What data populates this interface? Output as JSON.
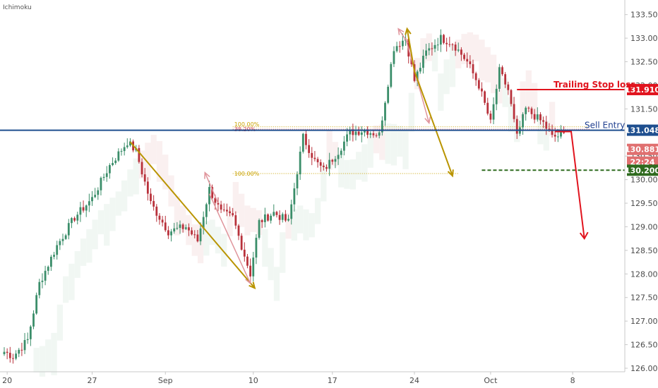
{
  "indicator_label": "Ichimoku",
  "colors": {
    "bull": "#3b8e6a",
    "bear": "#b8313b",
    "sell_line": "#1f4f8f",
    "trailing": "#e1141e",
    "target": "#2f6b1f",
    "fib": "#c9a200",
    "fib_red": "#d2485a",
    "cloud": "#f6e3e3",
    "cloud_green": "#e6f1ea"
  },
  "chart_data": {
    "type": "candlestick",
    "ylim": [
      126.0,
      133.6
    ],
    "yticks": [
      126.0,
      126.5,
      127.0,
      127.5,
      128.0,
      128.5,
      129.0,
      129.5,
      130.0,
      130.5,
      131.0,
      131.5,
      132.0,
      132.5,
      133.0,
      133.5
    ],
    "ytick_labels": [
      "126.000",
      "126.500",
      "127.000",
      "127.500",
      "128.000",
      "128.500",
      "129.000",
      "129.500",
      "130.000",
      "130.500",
      "131.000",
      "131.500",
      "132.000",
      "132.500",
      "133.000",
      "133.500"
    ],
    "xlabels": [
      "20",
      "27",
      "Sep",
      "10",
      "17",
      "24",
      "Oct",
      "8"
    ],
    "xlabel_index": [
      1,
      30,
      55,
      85,
      112,
      140,
      166,
      194
    ],
    "candle_count": 192,
    "anchors": [
      [
        0,
        126.35
      ],
      [
        3,
        126.25
      ],
      [
        8,
        126.6
      ],
      [
        12,
        127.8
      ],
      [
        18,
        128.6
      ],
      [
        24,
        129.2
      ],
      [
        30,
        129.6
      ],
      [
        36,
        130.3
      ],
      [
        42,
        130.8
      ],
      [
        45,
        130.6
      ],
      [
        50,
        129.5
      ],
      [
        56,
        128.9
      ],
      [
        62,
        129.0
      ],
      [
        66,
        128.7
      ],
      [
        70,
        129.8
      ],
      [
        74,
        129.3
      ],
      [
        78,
        129.2
      ],
      [
        84,
        128.0
      ],
      [
        87,
        129.1
      ],
      [
        92,
        129.3
      ],
      [
        97,
        129.1
      ],
      [
        102,
        130.9
      ],
      [
        106,
        130.4
      ],
      [
        109,
        130.2
      ],
      [
        114,
        130.6
      ],
      [
        118,
        131.0
      ],
      [
        123,
        131.05
      ],
      [
        128,
        130.95
      ],
      [
        133,
        132.8
      ],
      [
        137,
        133.0
      ],
      [
        140,
        132.1
      ],
      [
        144,
        132.7
      ],
      [
        149,
        133.0
      ],
      [
        153,
        132.9
      ],
      [
        158,
        132.5
      ],
      [
        162,
        132.0
      ],
      [
        166,
        131.2
      ],
      [
        169,
        132.3
      ],
      [
        172,
        131.9
      ],
      [
        175,
        130.9
      ],
      [
        178,
        131.5
      ],
      [
        181,
        131.35
      ],
      [
        184,
        131.2
      ],
      [
        187,
        130.9
      ],
      [
        191,
        130.95
      ]
    ],
    "sell_entry": 131.048,
    "current_price": 130.881,
    "current_time": "22:24",
    "trailing_stop": 131.91,
    "target": 130.2,
    "fib_levels": [
      {
        "label": "100.00%",
        "price": 131.12
      },
      {
        "label": "38.20%",
        "price": 131.07
      },
      {
        "label": "100.00%",
        "price": 130.13
      }
    ],
    "annotations": {
      "trailing_label": "Trailing Stop loss",
      "sell_label": "Sell Entry"
    },
    "badges": [
      {
        "text": "133.500",
        "price": 133.5
      },
      {
        "text": "131.910",
        "price": 131.91
      },
      {
        "text": "131.048",
        "price": 131.048
      },
      {
        "text": "130.881",
        "price": 130.881
      },
      {
        "text": "22:24",
        "price": 130.881
      },
      {
        "text": "130.200",
        "price": 130.2
      }
    ]
  }
}
